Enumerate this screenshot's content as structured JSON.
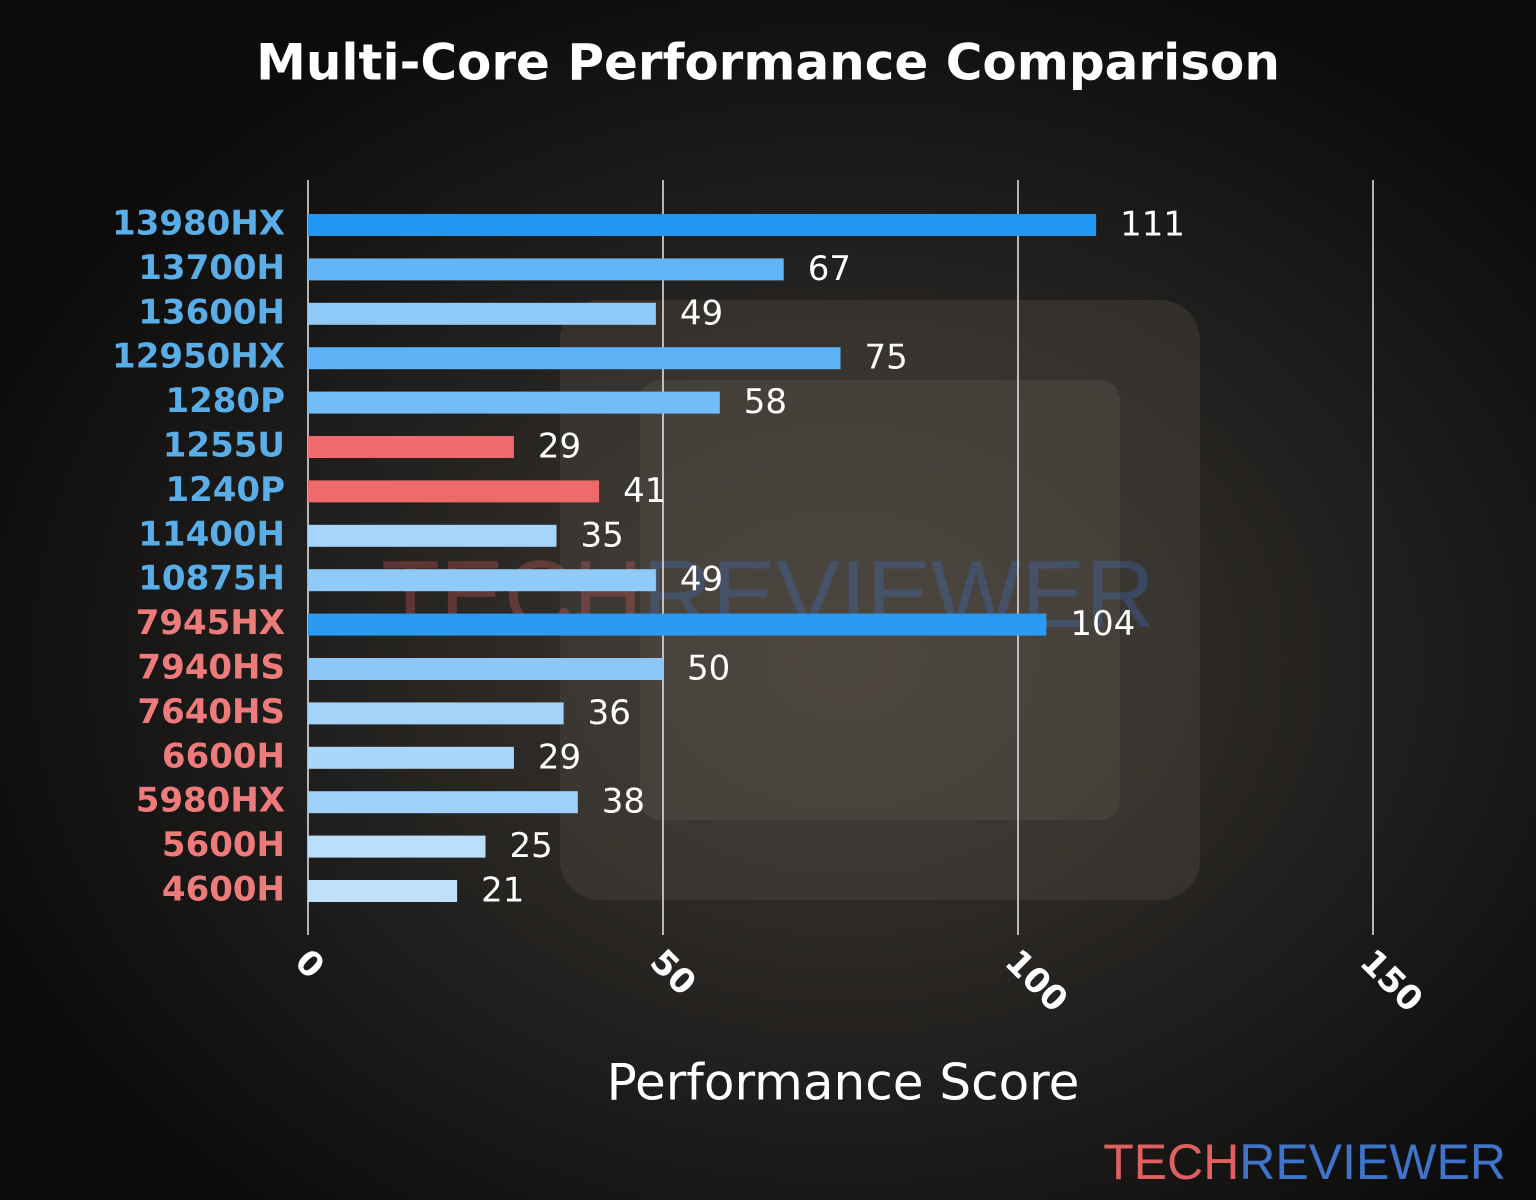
{
  "chart_data": {
    "type": "bar",
    "orientation": "horizontal",
    "title": "Multi-Core Performance Comparison",
    "x_label": "Performance Score",
    "categories": [
      "13980HX",
      "13700H",
      "13600H",
      "12950HX",
      "1280P",
      "1255U",
      "1240P",
      "11400H",
      "10875H",
      "7945HX",
      "7940HS",
      "7640HS",
      "6600H",
      "5980HX",
      "5600H",
      "4600H"
    ],
    "values": [
      111,
      67,
      49,
      75,
      58,
      29,
      41,
      35,
      49,
      104,
      50,
      36,
      29,
      38,
      25,
      21
    ],
    "colors": [
      "#2196f3",
      "#64b5f6",
      "#90caf9",
      "#5eb2f5",
      "#74bcf7",
      "#ef6a6a",
      "#ef6a6a",
      "#a6d4fa",
      "#90caf9",
      "#2a9af3",
      "#8cc7f8",
      "#a4d3fa",
      "#aad6fa",
      "#9fd0f9",
      "#bbdefb",
      "#bfe0fb"
    ],
    "label_colors": [
      "#5aaee8",
      "#5aaee8",
      "#5aaee8",
      "#5aaee8",
      "#5aaee8",
      "#5aaee8",
      "#5aaee8",
      "#5aaee8",
      "#5aaee8",
      "#ee7b7b",
      "#ee7b7b",
      "#ee7b7b",
      "#ee7b7b",
      "#ee7b7b",
      "#ee7b7b",
      "#ee7b7b"
    ],
    "xlim": [
      0,
      150
    ],
    "xticks": [
      0,
      50,
      100,
      150
    ],
    "grid": true,
    "watermark": {
      "parts": [
        "TECH",
        "REVIEWER"
      ],
      "colors": [
        "#e06060",
        "#3f74c8"
      ]
    }
  }
}
